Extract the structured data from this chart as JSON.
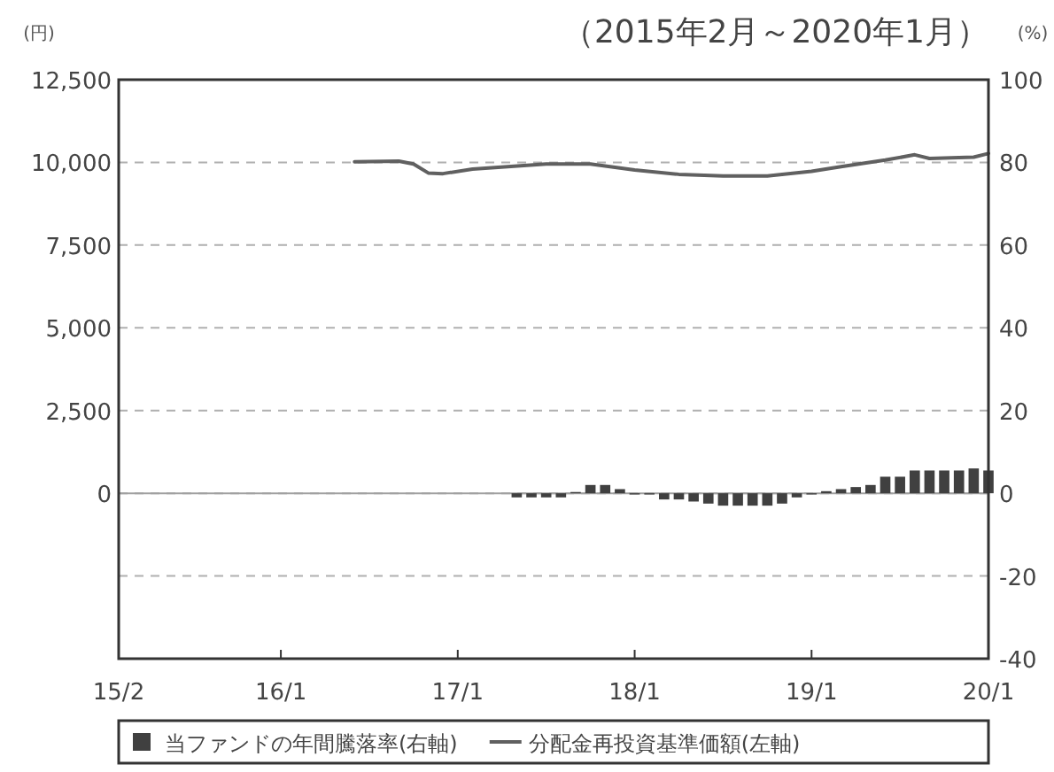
{
  "chart_data": {
    "type": "line",
    "title": "（2015年2月～2020年1月）",
    "ylabel": "(円)",
    "y2label": "(%)",
    "xlim": [
      "2015-02",
      "2020-01"
    ],
    "xticks": [
      {
        "value": "2015-02",
        "label": "15/2"
      },
      {
        "value": "2016-01",
        "label": "16/1"
      },
      {
        "value": "2017-01",
        "label": "17/1"
      },
      {
        "value": "2018-01",
        "label": "18/1"
      },
      {
        "value": "2019-01",
        "label": "19/1"
      },
      {
        "value": "2020-01",
        "label": "20/1"
      }
    ],
    "ylim": [
      -5000,
      12500
    ],
    "yticks": [
      {
        "value": 0,
        "label": "0"
      },
      {
        "value": 2500,
        "label": "2,500"
      },
      {
        "value": 5000,
        "label": "5,000"
      },
      {
        "value": 7500,
        "label": "7,500"
      },
      {
        "value": 10000,
        "label": "10,000"
      },
      {
        "value": 12500,
        "label": "12,500"
      }
    ],
    "y2lim": [
      -40,
      100
    ],
    "y2ticks": [
      -40,
      -20,
      0,
      20,
      40,
      60,
      80,
      100
    ],
    "grid": "y",
    "legend": "bottom",
    "ref_lines": [
      {
        "axis": "y",
        "value": 0,
        "color": "#a0a0a0",
        "line_style": "solid"
      }
    ],
    "series": [
      {
        "name": "当ファンドの年間騰落率(右軸)",
        "type": "bar",
        "axis": "y2",
        "color": "#404040",
        "x": [
          "2017-05",
          "2017-06",
          "2017-07",
          "2017-08",
          "2017-09",
          "2017-10",
          "2017-11",
          "2017-12",
          "2018-01",
          "2018-02",
          "2018-03",
          "2018-04",
          "2018-05",
          "2018-06",
          "2018-07",
          "2018-08",
          "2018-09",
          "2018-10",
          "2018-11",
          "2018-12",
          "2019-01",
          "2019-02",
          "2019-03",
          "2019-04",
          "2019-05",
          "2019-06",
          "2019-07",
          "2019-08",
          "2019-09",
          "2019-10",
          "2019-11",
          "2019-12",
          "2020-01"
        ],
        "values": [
          -1,
          -1,
          -1,
          -1,
          0.3,
          2,
          2,
          1,
          -0.3,
          -0.3,
          -1.5,
          -1.5,
          -2,
          -2.5,
          -3,
          -3,
          -3,
          -3,
          -2.5,
          -1,
          -0.3,
          0.5,
          1,
          1.5,
          2,
          4,
          4,
          5.5,
          5.5,
          5.5,
          5.5,
          6,
          5.5
        ]
      },
      {
        "name": "分配金再投資基準価額(左軸)",
        "axis": "y",
        "color": "#606060",
        "x": [
          "2016-06",
          "2016-09",
          "2016-10",
          "2016-11",
          "2016-12",
          "2017-02",
          "2017-07",
          "2017-10",
          "2018-01",
          "2018-04",
          "2018-07",
          "2018-10",
          "2019-01",
          "2019-03",
          "2019-06",
          "2019-08",
          "2019-09",
          "2019-12",
          "2020-01"
        ],
        "values": [
          10020,
          10040,
          9950,
          9680,
          9660,
          9800,
          9950,
          9950,
          9770,
          9640,
          9590,
          9590,
          9730,
          9870,
          10070,
          10230,
          10120,
          10160,
          10270
        ]
      }
    ]
  }
}
